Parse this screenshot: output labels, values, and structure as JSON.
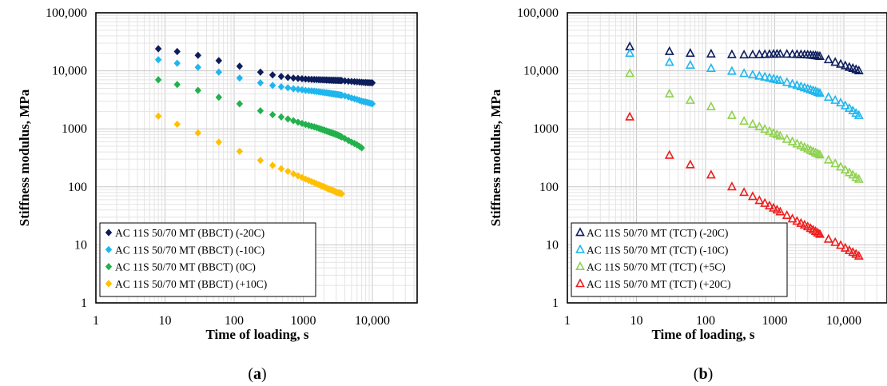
{
  "chart_data": [
    {
      "type": "scatter",
      "panel_label_open": "(",
      "panel_label_letter": "a",
      "panel_label_close": ")",
      "xlabel": "Time of loading, s",
      "ylabel": "Stiffness modulus, MPa",
      "xscale": "log",
      "yscale": "log",
      "xlim": [
        1,
        20000
      ],
      "ylim": [
        1,
        100000
      ],
      "xticks": [
        "1",
        "10",
        "100",
        "1000",
        "10,000"
      ],
      "yticks": [
        "1",
        "10",
        "100",
        "1000",
        "10,000",
        "100,000"
      ],
      "grid": true,
      "legend_position": "bottom-left",
      "marker": "diamond",
      "series": [
        {
          "name": "AC 11S 50/70 MT (BBCT) (-20C)",
          "color": "#0d1d5c",
          "x": [
            8,
            15,
            30,
            60,
            120,
            240,
            360,
            480,
            600,
            720,
            840,
            960,
            1080,
            1200,
            1320,
            1440,
            1560,
            1680,
            1800,
            1920,
            2040,
            2160,
            2280,
            2400,
            2520,
            2640,
            2760,
            2880,
            3000,
            3120,
            3240,
            3360,
            3480,
            3600,
            4000,
            4500,
            5000,
            5500,
            6000,
            6500,
            7000,
            7500,
            8000,
            8500,
            9000,
            9500,
            10000
          ],
          "y": [
            24000,
            21500,
            18500,
            15000,
            12000,
            9500,
            8500,
            8000,
            7700,
            7500,
            7400,
            7300,
            7200,
            7150,
            7100,
            7080,
            7050,
            7020,
            7000,
            6980,
            6960,
            6940,
            6920,
            6900,
            6880,
            6870,
            6860,
            6850,
            6840,
            6830,
            6820,
            6810,
            6800,
            6790,
            6700,
            6600,
            6550,
            6500,
            6450,
            6400,
            6350,
            6300,
            6280,
            6260,
            6240,
            6220,
            6200
          ]
        },
        {
          "name": "AC 11S 50/70 MT (BBCT) (-10C)",
          "color": "#1fb6ee",
          "x": [
            8,
            15,
            30,
            60,
            120,
            240,
            360,
            480,
            600,
            720,
            840,
            960,
            1080,
            1200,
            1320,
            1440,
            1560,
            1680,
            1800,
            1920,
            2040,
            2160,
            2280,
            2400,
            2520,
            2640,
            2760,
            2880,
            3000,
            3120,
            3240,
            3360,
            3480,
            3600,
            4000,
            4500,
            5000,
            5500,
            6000,
            6500,
            7000,
            7500,
            8000,
            8500,
            9000,
            9500,
            10000
          ],
          "y": [
            15500,
            13500,
            11500,
            9500,
            7500,
            6200,
            5600,
            5300,
            5100,
            4900,
            4800,
            4700,
            4600,
            4550,
            4500,
            4450,
            4400,
            4350,
            4300,
            4260,
            4220,
            4180,
            4140,
            4100,
            4060,
            4030,
            4000,
            3970,
            3940,
            3910,
            3880,
            3850,
            3820,
            3800,
            3700,
            3550,
            3400,
            3300,
            3200,
            3100,
            3000,
            2950,
            2900,
            2850,
            2800,
            2750,
            2700
          ]
        },
        {
          "name": "AC 11S 50/70 MT (BBCT) (0C)",
          "color": "#22b14c",
          "x": [
            8,
            15,
            30,
            60,
            120,
            240,
            360,
            480,
            600,
            720,
            840,
            960,
            1080,
            1200,
            1320,
            1440,
            1560,
            1680,
            1800,
            1920,
            2040,
            2160,
            2280,
            2400,
            2520,
            2640,
            2760,
            2880,
            3000,
            3120,
            3240,
            3360,
            3480,
            3600,
            4000,
            4500,
            5000,
            5500,
            6000,
            6500,
            7000
          ],
          "y": [
            7000,
            5800,
            4600,
            3500,
            2700,
            2050,
            1750,
            1600,
            1480,
            1380,
            1300,
            1240,
            1190,
            1150,
            1110,
            1080,
            1050,
            1020,
            990,
            965,
            940,
            920,
            900,
            880,
            860,
            845,
            830,
            815,
            800,
            785,
            770,
            755,
            740,
            725,
            680,
            630,
            590,
            560,
            530,
            500,
            470
          ]
        },
        {
          "name": "AC 11S 50/70 MT (BBCT) (+10C)",
          "color": "#ffc000",
          "x": [
            8,
            15,
            30,
            60,
            120,
            240,
            360,
            480,
            600,
            720,
            840,
            960,
            1080,
            1200,
            1320,
            1440,
            1560,
            1680,
            1800,
            1920,
            2040,
            2160,
            2280,
            2400,
            2520,
            2640,
            2760,
            2880,
            3000,
            3120,
            3240,
            3360,
            3480,
            3600
          ],
          "y": [
            1650,
            1200,
            850,
            590,
            410,
            285,
            235,
            205,
            185,
            168,
            155,
            145,
            136,
            129,
            123,
            118,
            113,
            109,
            105,
            102,
            99,
            96,
            93,
            91,
            89,
            87,
            85,
            83,
            81,
            80,
            79,
            78,
            77,
            76
          ]
        }
      ]
    },
    {
      "type": "scatter",
      "panel_label_open": "(",
      "panel_label_letter": "b",
      "panel_label_close": ")",
      "xlabel": "Time of loading, s",
      "ylabel": "Stiffness modulus, MPa",
      "xscale": "log",
      "yscale": "log",
      "xlim": [
        1,
        20000
      ],
      "ylim": [
        1,
        100000
      ],
      "xticks": [
        "1",
        "10",
        "100",
        "1000",
        "10,000"
      ],
      "yticks": [
        "1",
        "10",
        "100",
        "1000",
        "10,000",
        "100,000"
      ],
      "grid": true,
      "legend_position": "bottom-left",
      "marker": "triangle-open",
      "series": [
        {
          "name": "AC 11S 50/70 MT (TCT) (-20C)",
          "color": "#0d1d5c",
          "x": [
            8,
            30,
            60,
            120,
            240,
            360,
            480,
            600,
            720,
            840,
            960,
            1080,
            1200,
            1500,
            1800,
            2100,
            2400,
            2700,
            3000,
            3300,
            3600,
            3900,
            4200,
            4500,
            6000,
            7500,
            9000,
            10500,
            12000,
            13500,
            15000,
            16500
          ],
          "y": [
            26000,
            21500,
            20000,
            19500,
            19000,
            18800,
            18900,
            19000,
            19100,
            19200,
            19300,
            19400,
            19400,
            19300,
            19200,
            19100,
            19000,
            18900,
            18800,
            18600,
            18400,
            18200,
            18000,
            17700,
            15500,
            14000,
            13000,
            12200,
            11500,
            11000,
            10500,
            10000
          ]
        },
        {
          "name": "AC 11S 50/70 MT (TCT) (-10C)",
          "color": "#1fb6ee",
          "x": [
            8,
            30,
            60,
            120,
            240,
            360,
            480,
            600,
            720,
            840,
            960,
            1080,
            1200,
            1500,
            1800,
            2100,
            2400,
            2700,
            3000,
            3300,
            3600,
            3900,
            4200,
            4500,
            6000,
            7500,
            9000,
            10500,
            12000,
            13500,
            15000,
            16500
          ],
          "y": [
            20000,
            14000,
            12500,
            11000,
            9800,
            9000,
            8500,
            8100,
            7800,
            7500,
            7200,
            7000,
            6800,
            6300,
            5900,
            5600,
            5300,
            5100,
            4900,
            4700,
            4550,
            4400,
            4250,
            4100,
            3500,
            3100,
            2800,
            2500,
            2250,
            2050,
            1850,
            1700
          ]
        },
        {
          "name": "AC 11S 50/70 MT (TCT) (+5C)",
          "color": "#8fd14f",
          "x": [
            8,
            30,
            60,
            120,
            240,
            360,
            480,
            600,
            720,
            840,
            960,
            1080,
            1200,
            1500,
            1800,
            2100,
            2400,
            2700,
            3000,
            3300,
            3600,
            3900,
            4200,
            4500,
            6000,
            7500,
            9000,
            10500,
            12000,
            13500,
            15000,
            16500
          ],
          "y": [
            9000,
            4000,
            3100,
            2400,
            1700,
            1350,
            1200,
            1080,
            980,
            900,
            840,
            790,
            750,
            660,
            600,
            550,
            510,
            480,
            450,
            425,
            405,
            385,
            370,
            355,
            290,
            250,
            220,
            195,
            175,
            160,
            145,
            135
          ]
        },
        {
          "name": "AC 11S 50/70 MT (TCT) (+20C)",
          "color": "#ee1c1c",
          "x": [
            8,
            30,
            60,
            120,
            240,
            360,
            480,
            600,
            720,
            840,
            960,
            1080,
            1200,
            1500,
            1800,
            2100,
            2400,
            2700,
            3000,
            3300,
            3600,
            3900,
            4200,
            4500,
            6000,
            7500,
            9000,
            10500,
            12000,
            13500,
            15000,
            16500
          ],
          "y": [
            1600,
            350,
            240,
            160,
            100,
            80,
            68,
            58,
            52,
            47,
            43,
            40,
            37,
            32,
            28,
            25.5,
            23.5,
            22,
            20.5,
            19.2,
            18,
            17,
            16,
            15.2,
            12.5,
            11,
            9.8,
            8.8,
            8,
            7.4,
            6.9,
            6.4
          ]
        }
      ]
    }
  ]
}
